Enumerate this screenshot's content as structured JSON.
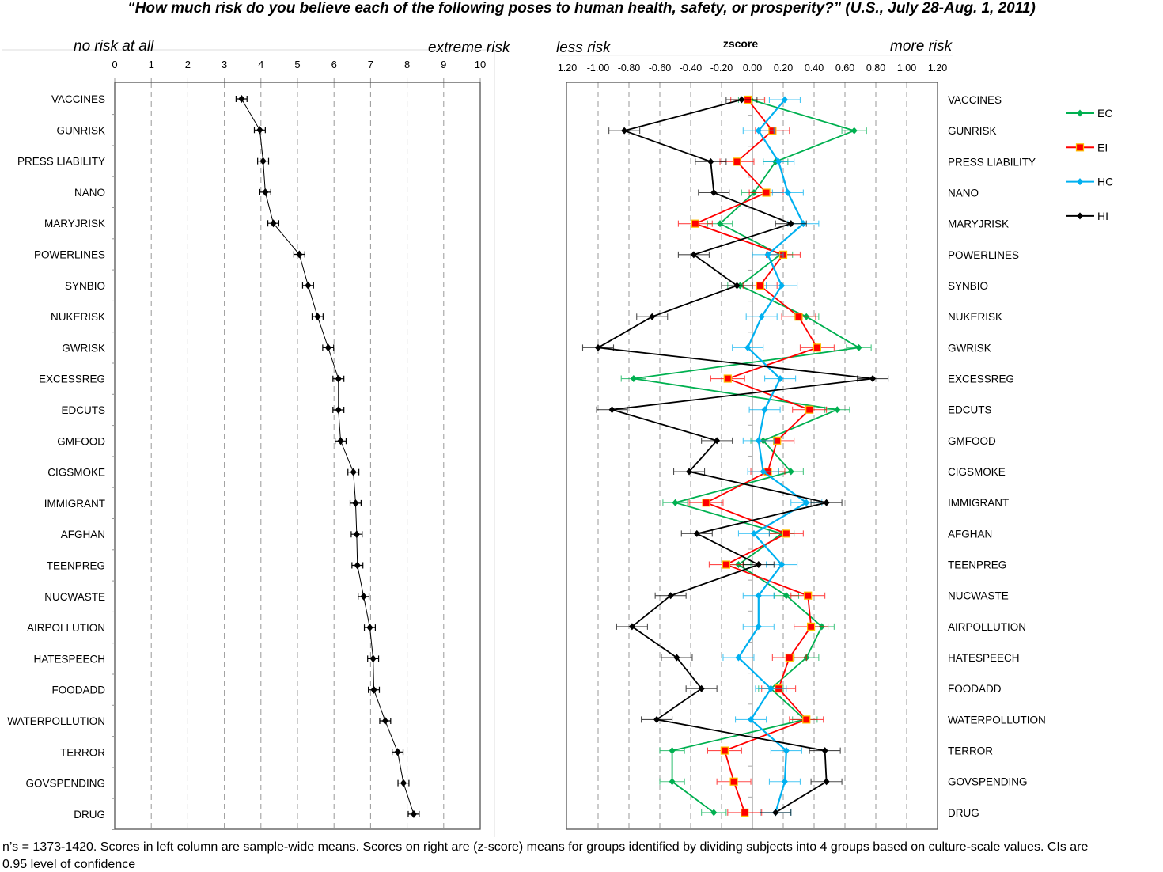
{
  "title": "“How much risk do you believe each of the following poses to human health, safety, or prosperity?” (U.S., July 28-Aug. 1, 2011)",
  "footer": {
    "line1": "n’s = 1373-1420. Scores in left column are sample-wide means.  Scores on right are  (z-score) means for groups identified by dividing subjects into 4 groups based on culture-scale values.    CIs are",
    "line2": "0.95 level of confidence"
  },
  "chart_data": [
    {
      "type": "line",
      "orientation": "horizontal",
      "left_anchor_label": "no risk at all",
      "right_anchor_label": "extreme risk",
      "xlim": [
        0,
        10
      ],
      "x_ticks": [
        "0",
        "1",
        "2",
        "3",
        "4",
        "5",
        "6",
        "7",
        "8",
        "9",
        "10"
      ],
      "grid": "vertical dashed",
      "categories": [
        "VACCINES",
        "GUNRISK",
        "PRESS LIABILITY",
        "NANO",
        "MARYJRISK",
        "POWERLINES",
        "SYNBIO",
        "NUKERISK",
        "GWRISK",
        "EXCESSREG",
        "EDCUTS",
        "GMFOOD",
        "CIGSMOKE",
        "IMMIGRANT",
        "AFGHAN",
        "TEENPREG",
        "NUCWASTE",
        "AIRPOLLUTION",
        "HATESPEECH",
        "FOODADD",
        "WATERPOLLUTION",
        "TERROR",
        "GOVSPENDING",
        "DRUG"
      ],
      "values": [
        3.47,
        3.97,
        4.06,
        4.12,
        4.34,
        5.05,
        5.29,
        5.55,
        5.84,
        6.12,
        6.12,
        6.18,
        6.53,
        6.59,
        6.62,
        6.64,
        6.81,
        6.98,
        7.07,
        7.09,
        7.4,
        7.74,
        7.9,
        8.18
      ],
      "ci_halfwidth": 0.15,
      "color": "#000000"
    },
    {
      "type": "line",
      "orientation": "horizontal",
      "axis_title": "zscore",
      "left_anchor_label": "less risk",
      "right_anchor_label": "more risk",
      "xlim": [
        -1.2,
        1.2
      ],
      "x_ticks": [
        "1.20",
        "-1.00",
        "-0.80",
        "-0.60",
        "-0.40",
        "-0.20",
        "0.00",
        "0.20",
        "0.40",
        "0.60",
        "0.80",
        "1.00",
        "1.20"
      ],
      "grid": "vertical dashed",
      "legend_position": "right",
      "categories": [
        "VACCINES",
        "GUNRISK",
        "PRESS LIABILITY",
        "NANO",
        "MARYJRISK",
        "POWERLINES",
        "SYNBIO",
        "NUKERISK",
        "GWRISK",
        "EXCESSREG",
        "EDCUTS",
        "GMFOOD",
        "CIGSMOKE",
        "IMMIGRANT",
        "AFGHAN",
        "TEENPREG",
        "NUCWASTE",
        "AIRPOLLUTION",
        "HATESPEECH",
        "FOODADD",
        "WATERPOLLUTION",
        "TERROR",
        "GOVSPENDING",
        "DRUG"
      ],
      "series": [
        {
          "name": "EC",
          "color": "#00b050",
          "marker": "diamond",
          "ci_halfwidth": 0.08,
          "values": [
            -0.01,
            0.66,
            0.15,
            0.01,
            -0.21,
            0.18,
            -0.08,
            0.35,
            0.69,
            -0.77,
            0.55,
            0.07,
            0.25,
            -0.5,
            0.19,
            -0.09,
            0.22,
            0.45,
            0.35,
            0.12,
            0.34,
            -0.52,
            -0.52,
            -0.25
          ]
        },
        {
          "name": "EI",
          "color": "#ff0000",
          "marker": "square",
          "ci_halfwidth": 0.11,
          "values": [
            -0.03,
            0.13,
            -0.1,
            0.09,
            -0.37,
            0.2,
            0.05,
            0.3,
            0.42,
            -0.16,
            0.37,
            0.16,
            0.1,
            -0.3,
            0.22,
            -0.17,
            0.36,
            0.38,
            0.24,
            0.17,
            0.35,
            -0.18,
            -0.12,
            -0.05
          ]
        },
        {
          "name": "HC",
          "color": "#00b0f0",
          "marker": "diamond",
          "ci_halfwidth": 0.1,
          "values": [
            0.21,
            0.04,
            0.17,
            0.23,
            0.33,
            0.1,
            0.19,
            0.06,
            -0.03,
            0.18,
            0.08,
            0.04,
            0.07,
            0.35,
            0.01,
            0.19,
            0.04,
            0.04,
            -0.09,
            0.12,
            -0.01,
            0.22,
            0.21,
            0.15
          ]
        },
        {
          "name": "HI",
          "color": "#000000",
          "marker": "diamond",
          "ci_halfwidth": 0.1,
          "values": [
            -0.07,
            -0.83,
            -0.27,
            -0.25,
            0.25,
            -0.38,
            -0.1,
            -0.65,
            -1.0,
            0.78,
            -0.91,
            -0.23,
            -0.41,
            0.48,
            -0.36,
            0.04,
            -0.53,
            -0.78,
            -0.49,
            -0.33,
            -0.62,
            0.47,
            0.48,
            0.15
          ]
        }
      ]
    }
  ]
}
